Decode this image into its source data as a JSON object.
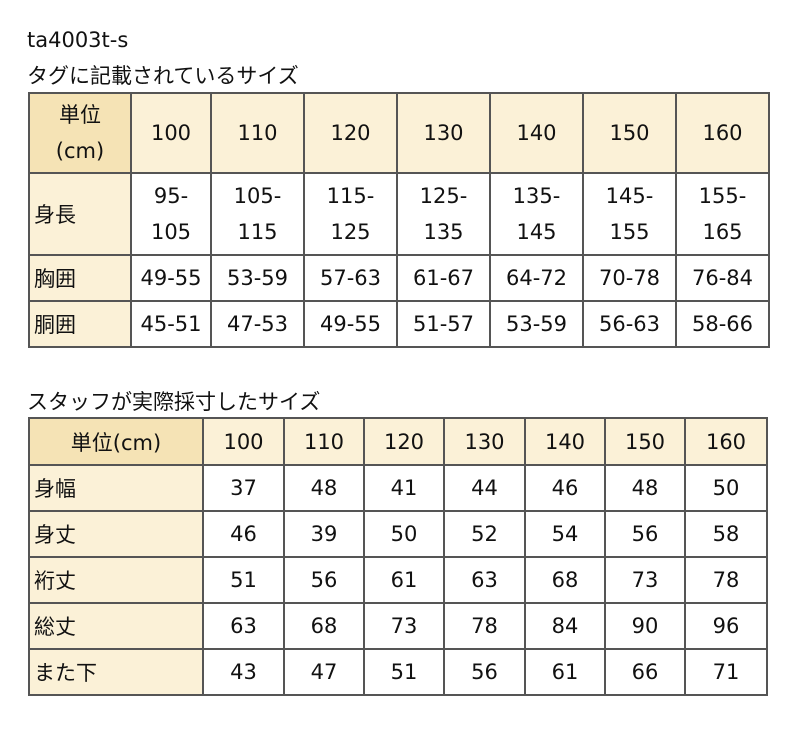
{
  "product_code": "ta4003t-s",
  "table1": {
    "title": "タグに記載されているサイズ",
    "unit_header_line1": "単位",
    "unit_header_line2": "(cm)",
    "columns": [
      "100",
      "110",
      "120",
      "130",
      "140",
      "150",
      "160"
    ],
    "rows": [
      {
        "label": "身長",
        "values": [
          [
            "95-",
            "105"
          ],
          [
            "105-",
            "115"
          ],
          [
            "115-",
            "125"
          ],
          [
            "125-",
            "135"
          ],
          [
            "135-",
            "145"
          ],
          [
            "145-",
            "155"
          ],
          [
            "155-",
            "165"
          ]
        ]
      },
      {
        "label": "胸囲",
        "values": [
          "49-55",
          "53-59",
          "57-63",
          "61-67",
          "64-72",
          "70-78",
          "76-84"
        ]
      },
      {
        "label": "胴囲",
        "values": [
          "45-51",
          "47-53",
          "49-55",
          "51-57",
          "53-59",
          "56-63",
          "58-66"
        ]
      }
    ]
  },
  "table2": {
    "title": "スタッフが実際採寸したサイズ",
    "unit_header": "単位(cm)",
    "columns": [
      "100",
      "110",
      "120",
      "130",
      "140",
      "150",
      "160"
    ],
    "rows": [
      {
        "label": "身幅",
        "values": [
          "37",
          "48",
          "41",
          "44",
          "46",
          "48",
          "50"
        ]
      },
      {
        "label": "身丈",
        "values": [
          "46",
          "39",
          "50",
          "52",
          "54",
          "56",
          "58"
        ]
      },
      {
        "label": "裄丈",
        "values": [
          "51",
          "56",
          "61",
          "63",
          "68",
          "73",
          "78"
        ]
      },
      {
        "label": "総丈",
        "values": [
          "63",
          "68",
          "73",
          "78",
          "84",
          "90",
          "96"
        ]
      },
      {
        "label": "また下",
        "values": [
          "43",
          "47",
          "51",
          "56",
          "61",
          "66",
          "71"
        ]
      }
    ]
  },
  "colors": {
    "header_bg": "#fbf1d7",
    "corner_bg": "#f5e3b5",
    "border": "#555555"
  }
}
